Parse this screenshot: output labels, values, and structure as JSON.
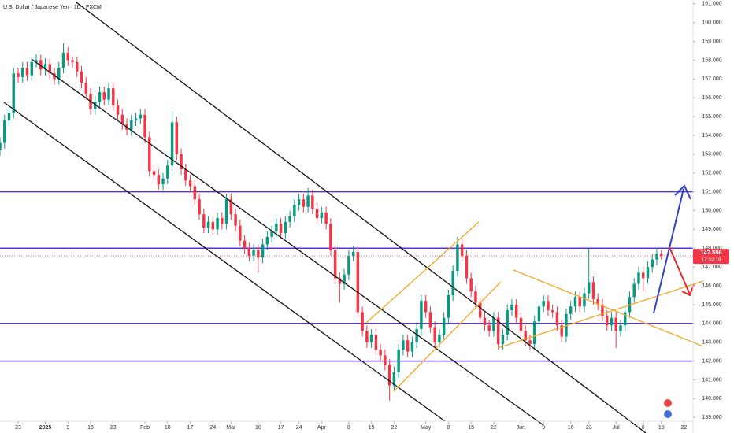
{
  "chart_data": {
    "type": "candlestick",
    "title": "U.S. Dollar / Japanese Yen · 1D · FXCM",
    "up_color": "#089981",
    "down_color": "#f23645",
    "ohlc": [
      [
        153.2,
        153.9,
        152.9,
        153.6
      ],
      [
        153.6,
        155.1,
        153.3,
        154.8
      ],
      [
        154.8,
        155.5,
        154.5,
        155.2
      ],
      [
        155.2,
        157.6,
        154.9,
        157.3
      ],
      [
        157.3,
        157.6,
        156.8,
        157.1
      ],
      [
        157.1,
        157.9,
        156.8,
        157.6
      ],
      [
        157.6,
        157.9,
        156.9,
        157.2
      ],
      [
        157.2,
        158.2,
        156.9,
        157.9
      ],
      [
        157.9,
        158.3,
        157.6,
        158.0
      ],
      [
        158.0,
        158.3,
        157.2,
        157.5
      ],
      [
        157.5,
        158.1,
        157.2,
        157.8
      ],
      [
        157.8,
        158.1,
        157.0,
        157.3
      ],
      [
        157.3,
        157.6,
        156.7,
        157.0
      ],
      [
        157.0,
        157.9,
        156.7,
        157.6
      ],
      [
        157.6,
        158.9,
        157.3,
        158.4
      ],
      [
        158.4,
        158.7,
        157.7,
        158.0
      ],
      [
        158.0,
        158.2,
        157.6,
        157.9
      ],
      [
        157.9,
        158.2,
        157.1,
        157.4
      ],
      [
        157.4,
        157.7,
        156.5,
        156.8
      ],
      [
        156.8,
        157.1,
        155.9,
        156.2
      ],
      [
        156.2,
        156.5,
        155.1,
        155.4
      ],
      [
        155.4,
        156.1,
        155.1,
        155.8
      ],
      [
        155.8,
        156.6,
        155.5,
        156.3
      ],
      [
        156.3,
        156.6,
        155.6,
        155.9
      ],
      [
        155.9,
        156.8,
        155.6,
        156.5
      ],
      [
        156.5,
        156.8,
        155.3,
        155.6
      ],
      [
        155.6,
        155.9,
        154.8,
        155.1
      ],
      [
        155.1,
        155.4,
        154.3,
        154.6
      ],
      [
        154.6,
        154.9,
        154.0,
        154.3
      ],
      [
        154.3,
        155.1,
        154.0,
        154.8
      ],
      [
        154.8,
        155.2,
        154.5,
        154.9
      ],
      [
        154.9,
        155.4,
        154.6,
        155.1
      ],
      [
        155.1,
        155.4,
        153.6,
        153.9
      ],
      [
        153.9,
        154.2,
        151.8,
        152.1
      ],
      [
        152.1,
        152.4,
        151.6,
        151.9
      ],
      [
        151.9,
        152.2,
        151.1,
        151.4
      ],
      [
        151.4,
        152.0,
        151.1,
        151.7
      ],
      [
        151.7,
        152.7,
        151.4,
        152.4
      ],
      [
        152.4,
        155.3,
        152.1,
        154.7
      ],
      [
        154.7,
        155.0,
        152.7,
        153.0
      ],
      [
        153.0,
        153.3,
        151.9,
        152.2
      ],
      [
        152.2,
        152.5,
        151.3,
        151.6
      ],
      [
        151.6,
        151.9,
        151.0,
        151.3
      ],
      [
        151.3,
        151.6,
        150.3,
        150.6
      ],
      [
        150.6,
        150.9,
        149.5,
        149.8
      ],
      [
        149.8,
        150.1,
        148.8,
        149.1
      ],
      [
        149.1,
        149.7,
        148.8,
        149.4
      ],
      [
        149.4,
        149.7,
        148.7,
        149.0
      ],
      [
        149.0,
        149.9,
        148.7,
        149.6
      ],
      [
        149.6,
        149.9,
        149.0,
        149.3
      ],
      [
        149.3,
        150.9,
        149.0,
        150.6
      ],
      [
        150.6,
        150.9,
        149.5,
        149.8
      ],
      [
        149.8,
        150.1,
        148.9,
        149.2
      ],
      [
        149.2,
        149.5,
        148.1,
        148.4
      ],
      [
        148.4,
        148.7,
        147.7,
        148.0
      ],
      [
        148.0,
        148.3,
        147.3,
        147.6
      ],
      [
        147.6,
        148.2,
        147.3,
        147.9
      ],
      [
        147.9,
        148.2,
        146.7,
        147.5
      ],
      [
        147.5,
        148.5,
        147.2,
        148.2
      ],
      [
        148.2,
        148.9,
        147.9,
        148.6
      ],
      [
        148.6,
        149.2,
        148.3,
        148.9
      ],
      [
        148.9,
        149.6,
        148.6,
        149.3
      ],
      [
        149.3,
        149.6,
        148.5,
        148.8
      ],
      [
        148.8,
        149.7,
        148.5,
        149.4
      ],
      [
        149.4,
        150.0,
        149.1,
        149.7
      ],
      [
        149.7,
        150.6,
        149.4,
        150.3
      ],
      [
        150.3,
        150.9,
        150.0,
        150.6
      ],
      [
        150.6,
        150.9,
        149.9,
        150.2
      ],
      [
        150.2,
        151.2,
        149.9,
        150.8
      ],
      [
        150.8,
        151.1,
        149.8,
        150.1
      ],
      [
        150.1,
        150.4,
        149.3,
        149.6
      ],
      [
        149.6,
        150.2,
        149.3,
        149.9
      ],
      [
        149.9,
        150.2,
        149.0,
        149.3
      ],
      [
        149.3,
        149.6,
        147.6,
        147.9
      ],
      [
        147.9,
        148.2,
        146.1,
        146.4
      ],
      [
        146.4,
        146.7,
        145.1,
        146.1
      ],
      [
        146.1,
        146.9,
        145.8,
        146.6
      ],
      [
        146.6,
        147.9,
        146.3,
        147.6
      ],
      [
        147.6,
        148.1,
        147.3,
        147.8
      ],
      [
        147.8,
        148.1,
        144.3,
        144.6
      ],
      [
        144.6,
        144.9,
        143.3,
        143.6
      ],
      [
        143.6,
        143.9,
        142.7,
        143.0
      ],
      [
        143.0,
        143.7,
        142.7,
        143.4
      ],
      [
        143.4,
        143.7,
        142.3,
        142.6
      ],
      [
        142.6,
        142.9,
        142.0,
        142.3
      ],
      [
        142.3,
        142.6,
        141.5,
        141.8
      ],
      [
        141.8,
        142.1,
        139.9,
        140.7
      ],
      [
        140.7,
        141.7,
        140.4,
        141.4
      ],
      [
        141.4,
        142.9,
        141.1,
        142.6
      ],
      [
        142.6,
        143.4,
        142.3,
        143.1
      ],
      [
        143.1,
        143.4,
        142.2,
        142.5
      ],
      [
        142.5,
        143.3,
        142.2,
        143.0
      ],
      [
        143.0,
        144.0,
        142.7,
        143.7
      ],
      [
        143.7,
        145.5,
        143.4,
        145.2
      ],
      [
        145.2,
        145.5,
        144.3,
        144.6
      ],
      [
        144.6,
        144.9,
        143.5,
        143.8
      ],
      [
        143.8,
        144.1,
        142.7,
        143.0
      ],
      [
        143.0,
        143.7,
        142.7,
        143.4
      ],
      [
        143.4,
        144.6,
        143.1,
        144.3
      ],
      [
        144.3,
        145.8,
        144.0,
        145.5
      ],
      [
        145.5,
        147.1,
        145.2,
        146.8
      ],
      [
        146.8,
        148.6,
        146.5,
        148.2
      ],
      [
        148.2,
        148.5,
        147.3,
        147.6
      ],
      [
        147.6,
        147.9,
        146.1,
        146.4
      ],
      [
        146.4,
        146.7,
        145.4,
        145.7
      ],
      [
        145.7,
        146.0,
        144.8,
        145.1
      ],
      [
        145.1,
        145.4,
        144.0,
        144.3
      ],
      [
        144.3,
        144.6,
        143.6,
        143.9
      ],
      [
        143.9,
        144.2,
        143.3,
        143.6
      ],
      [
        143.6,
        144.6,
        143.3,
        144.3
      ],
      [
        144.3,
        144.6,
        142.6,
        142.9
      ],
      [
        142.9,
        143.7,
        142.6,
        143.4
      ],
      [
        143.4,
        145.0,
        143.1,
        144.7
      ],
      [
        144.7,
        145.3,
        144.4,
        145.0
      ],
      [
        145.0,
        145.3,
        144.0,
        144.3
      ],
      [
        144.3,
        144.6,
        143.3,
        143.6
      ],
      [
        143.6,
        143.9,
        142.8,
        143.1
      ],
      [
        143.1,
        143.4,
        142.6,
        142.9
      ],
      [
        142.9,
        144.4,
        142.6,
        144.1
      ],
      [
        144.1,
        145.2,
        143.8,
        144.9
      ],
      [
        144.9,
        145.5,
        144.6,
        145.2
      ],
      [
        145.2,
        145.5,
        144.4,
        144.7
      ],
      [
        144.7,
        145.0,
        144.3,
        144.6
      ],
      [
        144.6,
        144.9,
        143.6,
        143.9
      ],
      [
        143.9,
        144.2,
        143.0,
        143.3
      ],
      [
        143.3,
        144.8,
        143.0,
        144.5
      ],
      [
        144.5,
        145.2,
        144.2,
        144.9
      ],
      [
        144.9,
        145.7,
        144.6,
        145.4
      ],
      [
        145.4,
        145.7,
        144.6,
        144.9
      ],
      [
        144.9,
        145.9,
        144.6,
        145.6
      ],
      [
        145.6,
        148.0,
        145.3,
        146.2
      ],
      [
        146.2,
        146.5,
        145.0,
        145.3
      ],
      [
        145.3,
        145.6,
        144.7,
        145.0
      ],
      [
        145.0,
        145.3,
        144.1,
        144.4
      ],
      [
        144.4,
        144.7,
        143.6,
        143.9
      ],
      [
        143.9,
        144.6,
        143.6,
        144.3
      ],
      [
        144.3,
        144.6,
        142.7,
        143.6
      ],
      [
        143.6,
        144.2,
        143.3,
        143.9
      ],
      [
        143.9,
        144.9,
        143.6,
        144.6
      ],
      [
        144.6,
        145.7,
        144.3,
        145.4
      ],
      [
        145.4,
        146.4,
        145.1,
        146.1
      ],
      [
        146.1,
        147.0,
        145.8,
        146.7
      ],
      [
        146.7,
        147.0,
        145.7,
        146.4
      ],
      [
        146.4,
        147.3,
        146.1,
        147.0
      ],
      [
        147.0,
        147.7,
        146.7,
        147.4
      ],
      [
        147.4,
        148.0,
        147.1,
        147.7
      ],
      [
        147.7,
        147.9,
        147.4,
        147.586
      ]
    ],
    "countdown": "17:32:19",
    "levels": [
      151,
      148,
      144,
      142
    ],
    "level_color": "#5b32d6",
    "xlim": [
      0,
      153
    ],
    "xticks": [
      {
        "value": 4,
        "label": "23"
      },
      {
        "value": 10,
        "label": "2025"
      },
      {
        "value": 15,
        "label": "9"
      },
      {
        "value": 20,
        "label": "16"
      },
      {
        "value": 25,
        "label": "23"
      },
      {
        "value": 32,
        "label": "Feb"
      },
      {
        "value": 37,
        "label": "10"
      },
      {
        "value": 42,
        "label": "17"
      },
      {
        "value": 47,
        "label": "24"
      },
      {
        "value": 51,
        "label": "Mar"
      },
      {
        "value": 57,
        "label": "10"
      },
      {
        "value": 62,
        "label": "17"
      },
      {
        "value": 66,
        "label": "24"
      },
      {
        "value": 71,
        "label": "Apr"
      },
      {
        "value": 77,
        "label": "8"
      },
      {
        "value": 82,
        "label": "15"
      },
      {
        "value": 87,
        "label": "22"
      },
      {
        "value": 94,
        "label": "May"
      },
      {
        "value": 99,
        "label": "8"
      },
      {
        "value": 104,
        "label": "15"
      },
      {
        "value": 109,
        "label": "22"
      },
      {
        "value": 115,
        "label": "Jun"
      },
      {
        "value": 120,
        "label": "9"
      },
      {
        "value": 126,
        "label": "16"
      },
      {
        "value": 130,
        "label": "23"
      },
      {
        "value": 136,
        "label": "Jul"
      },
      {
        "value": 142,
        "label": "8"
      },
      {
        "value": 146,
        "label": "15"
      },
      {
        "value": 151,
        "label": "22"
      }
    ],
    "ylim": [
      138.8,
      161.2
    ],
    "yticks": [
      {
        "value": 139,
        "label": "139.000"
      },
      {
        "value": 140,
        "label": "140.000"
      },
      {
        "value": 141,
        "label": "141.000"
      },
      {
        "value": 142,
        "label": "142.000"
      },
      {
        "value": 143,
        "label": "143.000"
      },
      {
        "value": 144,
        "label": "144.000"
      },
      {
        "value": 145,
        "label": "145.000"
      },
      {
        "value": 146,
        "label": "146.000"
      },
      {
        "value": 147,
        "label": "147.000"
      },
      {
        "value": 148,
        "label": "148.000"
      },
      {
        "value": 149,
        "label": "149.000"
      },
      {
        "value": 150,
        "label": "150.000"
      },
      {
        "value": 151,
        "label": "151.000"
      },
      {
        "value": 152,
        "label": "152.000"
      },
      {
        "value": 153,
        "label": "153.000"
      },
      {
        "value": 154,
        "label": "154.000"
      },
      {
        "value": 155,
        "label": "155.000"
      },
      {
        "value": 156,
        "label": "156.000"
      },
      {
        "value": 157,
        "label": "157.000"
      },
      {
        "value": 158,
        "label": "158.000"
      },
      {
        "value": 159,
        "label": "159.000"
      },
      {
        "value": 160,
        "label": "160.000"
      },
      {
        "value": 161,
        "label": "161.000"
      }
    ]
  }
}
